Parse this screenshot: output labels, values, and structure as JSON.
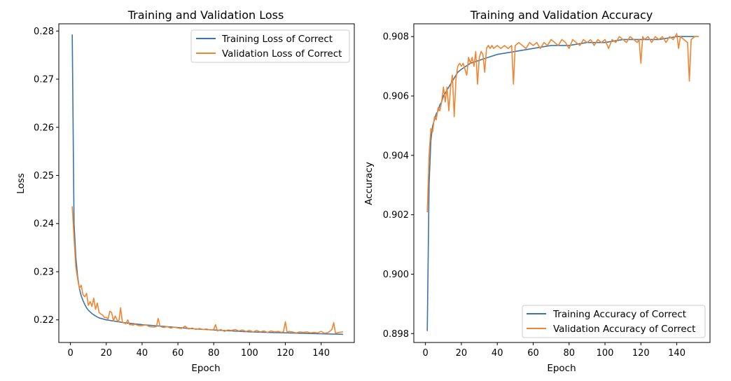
{
  "colors": {
    "train": "#3a75a8",
    "val": "#ef8632"
  },
  "chart_data": [
    {
      "type": "line",
      "title": "Training and Validation Loss",
      "xlabel": "Epoch",
      "ylabel": "Loss",
      "xlim": [
        -6.5,
        158.5
      ],
      "ylim": [
        0.2153,
        0.2815
      ],
      "xticks": [
        0,
        20,
        40,
        60,
        80,
        100,
        120,
        140
      ],
      "xtick_labels": [
        "0",
        "20",
        "40",
        "60",
        "80",
        "100",
        "120",
        "140"
      ],
      "yticks": [
        0.22,
        0.23,
        0.24,
        0.25,
        0.26,
        0.27,
        0.28
      ],
      "ytick_labels": [
        "0.22",
        "0.23",
        "0.24",
        "0.25",
        "0.26",
        "0.27",
        "0.28"
      ],
      "legend_position": "top-right",
      "series": [
        {
          "name": "Training Loss of Correct",
          "color_key": "train",
          "points": [
            [
              1,
              0.2792
            ],
            [
              2,
              0.24
            ],
            [
              3,
              0.233
            ],
            [
              4,
              0.229
            ],
            [
              5,
              0.2265
            ],
            [
              6,
              0.225
            ],
            [
              7,
              0.224
            ],
            [
              8,
              0.2232
            ],
            [
              9,
              0.2225
            ],
            [
              10,
              0.222
            ],
            [
              12,
              0.2213
            ],
            [
              14,
              0.2208
            ],
            [
              16,
              0.2204
            ],
            [
              18,
              0.2202
            ],
            [
              20,
              0.22
            ],
            [
              25,
              0.2197
            ],
            [
              30,
              0.2194
            ],
            [
              40,
              0.219
            ],
            [
              50,
              0.2187
            ],
            [
              60,
              0.2184
            ],
            [
              70,
              0.2181
            ],
            [
              80,
              0.2179
            ],
            [
              90,
              0.2177
            ],
            [
              100,
              0.2175
            ],
            [
              110,
              0.2174
            ],
            [
              120,
              0.2173
            ],
            [
              130,
              0.2172
            ],
            [
              140,
              0.2171
            ],
            [
              152,
              0.217
            ]
          ]
        },
        {
          "name": "Validation Loss of Correct",
          "color_key": "val",
          "points": [
            [
              1,
              0.2435
            ],
            [
              2,
              0.237
            ],
            [
              3,
              0.231
            ],
            [
              4,
              0.2285
            ],
            [
              5,
              0.2265
            ],
            [
              6,
              0.2272
            ],
            [
              7,
              0.2252
            ],
            [
              8,
              0.2248
            ],
            [
              9,
              0.2255
            ],
            [
              10,
              0.223
            ],
            [
              11,
              0.2238
            ],
            [
              12,
              0.2228
            ],
            [
              13,
              0.2245
            ],
            [
              14,
              0.2222
            ],
            [
              15,
              0.2235
            ],
            [
              16,
              0.2215
            ],
            [
              17,
              0.2212
            ],
            [
              18,
              0.221
            ],
            [
              19,
              0.2205
            ],
            [
              20,
              0.2205
            ],
            [
              21,
              0.2202
            ],
            [
              22,
              0.2218
            ],
            [
              23,
              0.2215
            ],
            [
              24,
              0.2198
            ],
            [
              25,
              0.2208
            ],
            [
              26,
              0.22
            ],
            [
              27,
              0.2196
            ],
            [
              28,
              0.2225
            ],
            [
              29,
              0.2195
            ],
            [
              30,
              0.2193
            ],
            [
              31,
              0.2192
            ],
            [
              32,
              0.22
            ],
            [
              33,
              0.219
            ],
            [
              34,
              0.219
            ],
            [
              35,
              0.2189
            ],
            [
              36,
              0.2191
            ],
            [
              38,
              0.2188
            ],
            [
              40,
              0.2188
            ],
            [
              42,
              0.219
            ],
            [
              44,
              0.2186
            ],
            [
              46,
              0.2185
            ],
            [
              48,
              0.2186
            ],
            [
              49,
              0.2203
            ],
            [
              50,
              0.2187
            ],
            [
              52,
              0.2184
            ],
            [
              54,
              0.2186
            ],
            [
              56,
              0.2183
            ],
            [
              58,
              0.2185
            ],
            [
              60,
              0.2183
            ],
            [
              62,
              0.2182
            ],
            [
              64,
              0.2187
            ],
            [
              66,
              0.2181
            ],
            [
              68,
              0.2183
            ],
            [
              70,
              0.218
            ],
            [
              72,
              0.2182
            ],
            [
              74,
              0.218
            ],
            [
              76,
              0.2181
            ],
            [
              78,
              0.2179
            ],
            [
              80,
              0.218
            ],
            [
              81,
              0.219
            ],
            [
              82,
              0.2177
            ],
            [
              84,
              0.218
            ],
            [
              86,
              0.2176
            ],
            [
              88,
              0.2179
            ],
            [
              90,
              0.2178
            ],
            [
              92,
              0.218
            ],
            [
              94,
              0.2177
            ],
            [
              96,
              0.2179
            ],
            [
              98,
              0.2176
            ],
            [
              100,
              0.2178
            ],
            [
              102,
              0.2175
            ],
            [
              104,
              0.2178
            ],
            [
              106,
              0.2175
            ],
            [
              108,
              0.2177
            ],
            [
              110,
              0.2174
            ],
            [
              112,
              0.2177
            ],
            [
              114,
              0.2175
            ],
            [
              116,
              0.2176
            ],
            [
              118,
              0.2174
            ],
            [
              119,
              0.2176
            ],
            [
              120,
              0.2196
            ],
            [
              121,
              0.2174
            ],
            [
              122,
              0.2176
            ],
            [
              124,
              0.2175
            ],
            [
              126,
              0.2173
            ],
            [
              128,
              0.2175
            ],
            [
              130,
              0.2174
            ],
            [
              132,
              0.2175
            ],
            [
              134,
              0.2173
            ],
            [
              136,
              0.2174
            ],
            [
              138,
              0.2173
            ],
            [
              140,
              0.2176
            ],
            [
              142,
              0.2172
            ],
            [
              144,
              0.2174
            ],
            [
              146,
              0.218
            ],
            [
              147,
              0.2194
            ],
            [
              148,
              0.2172
            ],
            [
              150,
              0.2174
            ],
            [
              152,
              0.2175
            ]
          ]
        }
      ]
    },
    {
      "type": "line",
      "title": "Training and Validation Accuracy",
      "xlabel": "Epoch",
      "ylabel": "Accuracy",
      "xlim": [
        -6.5,
        158.5
      ],
      "ylim": [
        0.8977,
        0.90843
      ],
      "xticks": [
        0,
        20,
        40,
        60,
        80,
        100,
        120,
        140
      ],
      "xtick_labels": [
        "0",
        "20",
        "40",
        "60",
        "80",
        "100",
        "120",
        "140"
      ],
      "yticks": [
        0.898,
        0.9,
        0.902,
        0.904,
        0.906,
        0.908
      ],
      "ytick_labels": [
        "0.898",
        "0.900",
        "0.902",
        "0.904",
        "0.906",
        "0.908"
      ],
      "legend_position": "bottom-right",
      "series": [
        {
          "name": "Training Accuracy of Correct",
          "color_key": "train",
          "points": [
            [
              1,
              0.8981
            ],
            [
              2,
              0.903
            ],
            [
              3,
              0.9045
            ],
            [
              4,
              0.905
            ],
            [
              5,
              0.9052
            ],
            [
              6,
              0.9054
            ],
            [
              7,
              0.9055
            ],
            [
              8,
              0.9057
            ],
            [
              9,
              0.9058
            ],
            [
              10,
              0.906
            ],
            [
              12,
              0.9062
            ],
            [
              14,
              0.9064
            ],
            [
              16,
              0.9066
            ],
            [
              18,
              0.9068
            ],
            [
              20,
              0.9069
            ],
            [
              25,
              0.9071
            ],
            [
              30,
              0.9072
            ],
            [
              35,
              0.9073
            ],
            [
              40,
              0.9074
            ],
            [
              50,
              0.9075
            ],
            [
              60,
              0.9076
            ],
            [
              70,
              0.9077
            ],
            [
              80,
              0.9077
            ],
            [
              90,
              0.9078
            ],
            [
              100,
              0.9078
            ],
            [
              110,
              0.9079
            ],
            [
              120,
              0.9079
            ],
            [
              130,
              0.9079
            ],
            [
              140,
              0.908
            ],
            [
              152,
              0.908
            ]
          ]
        },
        {
          "name": "Validation Accuracy of Correct",
          "color_key": "val",
          "points": [
            [
              1,
              0.9021
            ],
            [
              2,
              0.904
            ],
            [
              3,
              0.9049
            ],
            [
              4,
              0.9048
            ],
            [
              5,
              0.9053
            ],
            [
              6,
              0.9052
            ],
            [
              7,
              0.9056
            ],
            [
              8,
              0.9055
            ],
            [
              9,
              0.9058
            ],
            [
              10,
              0.9063
            ],
            [
              11,
              0.9058
            ],
            [
              12,
              0.9063
            ],
            [
              13,
              0.9055
            ],
            [
              14,
              0.9063
            ],
            [
              15,
              0.9067
            ],
            [
              16,
              0.9053
            ],
            [
              17,
              0.9066
            ],
            [
              18,
              0.907
            ],
            [
              19,
              0.9071
            ],
            [
              20,
              0.907
            ],
            [
              21,
              0.9071
            ],
            [
              22,
              0.9069
            ],
            [
              23,
              0.9067
            ],
            [
              24,
              0.9073
            ],
            [
              25,
              0.9071
            ],
            [
              26,
              0.9073
            ],
            [
              27,
              0.907
            ],
            [
              28,
              0.9075
            ],
            [
              29,
              0.9064
            ],
            [
              30,
              0.9073
            ],
            [
              31,
              0.9075
            ],
            [
              32,
              0.9074
            ],
            [
              33,
              0.9068
            ],
            [
              34,
              0.9076
            ],
            [
              35,
              0.9077
            ],
            [
              36,
              0.9076
            ],
            [
              37,
              0.9077
            ],
            [
              38,
              0.9076
            ],
            [
              40,
              0.9077
            ],
            [
              42,
              0.9076
            ],
            [
              44,
              0.9077
            ],
            [
              46,
              0.9076
            ],
            [
              48,
              0.9077
            ],
            [
              49,
              0.9064
            ],
            [
              50,
              0.9077
            ],
            [
              52,
              0.9078
            ],
            [
              54,
              0.9077
            ],
            [
              56,
              0.9076
            ],
            [
              58,
              0.9078
            ],
            [
              60,
              0.9077
            ],
            [
              62,
              0.9078
            ],
            [
              64,
              0.9076
            ],
            [
              66,
              0.9078
            ],
            [
              68,
              0.9077
            ],
            [
              70,
              0.9079
            ],
            [
              72,
              0.9078
            ],
            [
              74,
              0.9077
            ],
            [
              76,
              0.9079
            ],
            [
              78,
              0.9078
            ],
            [
              80,
              0.9076
            ],
            [
              82,
              0.9079
            ],
            [
              84,
              0.9078
            ],
            [
              86,
              0.9077
            ],
            [
              88,
              0.9079
            ],
            [
              90,
              0.9078
            ],
            [
              92,
              0.9079
            ],
            [
              94,
              0.9077
            ],
            [
              96,
              0.9079
            ],
            [
              98,
              0.9078
            ],
            [
              100,
              0.9079
            ],
            [
              102,
              0.9076
            ],
            [
              104,
              0.9079
            ],
            [
              106,
              0.9078
            ],
            [
              108,
              0.908
            ],
            [
              110,
              0.9079
            ],
            [
              112,
              0.9078
            ],
            [
              114,
              0.908
            ],
            [
              116,
              0.9079
            ],
            [
              118,
              0.9078
            ],
            [
              119,
              0.9079
            ],
            [
              120,
              0.9071
            ],
            [
              121,
              0.908
            ],
            [
              122,
              0.9079
            ],
            [
              124,
              0.908
            ],
            [
              126,
              0.9078
            ],
            [
              128,
              0.908
            ],
            [
              130,
              0.9079
            ],
            [
              132,
              0.908
            ],
            [
              134,
              0.9078
            ],
            [
              136,
              0.908
            ],
            [
              138,
              0.9079
            ],
            [
              140,
              0.9081
            ],
            [
              141,
              0.9076
            ],
            [
              142,
              0.908
            ],
            [
              144,
              0.9079
            ],
            [
              146,
              0.9078
            ],
            [
              147,
              0.9065
            ],
            [
              148,
              0.9079
            ],
            [
              150,
              0.908
            ],
            [
              152,
              0.908
            ]
          ]
        }
      ]
    }
  ]
}
